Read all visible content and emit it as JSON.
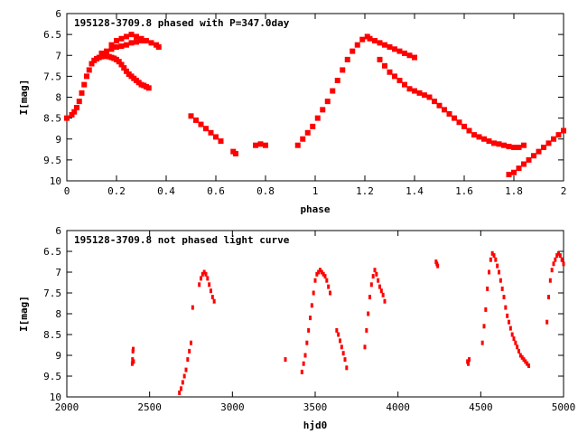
{
  "chart_data": [
    {
      "type": "scatter",
      "title": "195128-3709.8 phased with P=347.0day",
      "xlabel": "phase",
      "ylabel": "I[mag]",
      "xlim": [
        0,
        2
      ],
      "ylim": [
        10,
        6
      ],
      "y_inverted": true,
      "grid": false,
      "legend": "none",
      "marker_color": "#ff0000",
      "xticks": [
        {
          "value": 0,
          "label": "0"
        },
        {
          "value": 0.2,
          "label": "0.2"
        },
        {
          "value": 0.4,
          "label": "0.4"
        },
        {
          "value": 0.6,
          "label": "0.6"
        },
        {
          "value": 0.8,
          "label": "0.8"
        },
        {
          "value": 1,
          "label": "1"
        },
        {
          "value": 1.2,
          "label": "1.2"
        },
        {
          "value": 1.4,
          "label": "1.4"
        },
        {
          "value": 1.6,
          "label": "1.6"
        },
        {
          "value": 1.8,
          "label": "1.8"
        },
        {
          "value": 2,
          "label": "2"
        }
      ],
      "yticks": [
        {
          "value": 6,
          "label": "6"
        },
        {
          "value": 6.5,
          "label": "6.5"
        },
        {
          "value": 7,
          "label": "7"
        },
        {
          "value": 7.5,
          "label": "7.5"
        },
        {
          "value": 8,
          "label": "8"
        },
        {
          "value": 8.5,
          "label": "8.5"
        },
        {
          "value": 9,
          "label": "9"
        },
        {
          "value": 9.5,
          "label": "9.5"
        },
        {
          "value": 10,
          "label": "10"
        }
      ],
      "x": [
        0.0,
        0.02,
        0.03,
        0.04,
        0.05,
        0.06,
        0.07,
        0.08,
        0.09,
        0.1,
        0.11,
        0.12,
        0.13,
        0.14,
        0.15,
        0.16,
        0.17,
        0.18,
        0.19,
        0.2,
        0.21,
        0.22,
        0.23,
        0.24,
        0.25,
        0.26,
        0.27,
        0.28,
        0.29,
        0.3,
        0.31,
        0.32,
        0.33,
        0.36,
        0.37,
        0.18,
        0.2,
        0.22,
        0.24,
        0.26,
        0.28,
        0.3,
        0.32,
        0.34,
        0.14,
        0.16,
        0.18,
        0.2,
        0.22,
        0.24,
        0.26,
        0.28,
        0.3,
        0.5,
        0.52,
        0.54,
        0.56,
        0.58,
        0.6,
        0.62,
        0.67,
        0.68,
        0.76,
        0.78,
        0.8,
        0.93,
        0.95,
        0.97,
        0.99,
        1.01,
        1.03,
        1.05,
        1.07,
        1.09,
        1.11,
        1.13,
        1.15,
        1.17,
        1.19,
        1.21,
        1.22,
        1.24,
        1.26,
        1.28,
        1.3,
        1.32,
        1.34,
        1.36,
        1.38,
        1.4,
        1.26,
        1.28,
        1.3,
        1.32,
        1.34,
        1.36,
        1.38,
        1.4,
        1.42,
        1.44,
        1.46,
        1.48,
        1.5,
        1.52,
        1.54,
        1.56,
        1.58,
        1.6,
        1.62,
        1.64,
        1.66,
        1.68,
        1.7,
        1.72,
        1.74,
        1.76,
        1.78,
        1.8,
        1.82,
        1.84,
        1.78,
        1.8,
        1.82,
        1.84,
        1.86,
        1.88,
        1.9,
        1.92,
        1.94,
        1.96,
        1.98,
        2.0
      ],
      "y": [
        8.5,
        8.42,
        8.35,
        8.25,
        8.1,
        7.9,
        7.7,
        7.5,
        7.35,
        7.2,
        7.12,
        7.08,
        7.05,
        7.03,
        7.02,
        7.02,
        7.03,
        7.05,
        7.07,
        7.1,
        7.15,
        7.22,
        7.3,
        7.38,
        7.45,
        7.5,
        7.55,
        7.6,
        7.65,
        7.7,
        7.72,
        7.75,
        7.78,
        6.75,
        6.8,
        6.75,
        6.65,
        6.6,
        6.55,
        6.5,
        6.55,
        6.6,
        6.65,
        6.7,
        6.95,
        6.9,
        6.85,
        6.8,
        6.78,
        6.75,
        6.7,
        6.68,
        6.65,
        8.45,
        8.55,
        8.65,
        8.75,
        8.85,
        8.95,
        9.05,
        9.3,
        9.35,
        9.15,
        9.12,
        9.15,
        9.15,
        9.0,
        8.85,
        8.7,
        8.5,
        8.3,
        8.1,
        7.85,
        7.6,
        7.35,
        7.1,
        6.9,
        6.75,
        6.62,
        6.55,
        6.6,
        6.65,
        6.7,
        6.75,
        6.8,
        6.85,
        6.9,
        6.95,
        7.0,
        7.05,
        7.1,
        7.25,
        7.4,
        7.5,
        7.6,
        7.7,
        7.8,
        7.85,
        7.9,
        7.95,
        8.0,
        8.1,
        8.2,
        8.3,
        8.4,
        8.5,
        8.6,
        8.7,
        8.8,
        8.9,
        8.95,
        9.0,
        9.05,
        9.1,
        9.12,
        9.15,
        9.18,
        9.2,
        9.2,
        9.15,
        9.85,
        9.8,
        9.7,
        9.6,
        9.5,
        9.4,
        9.3,
        9.2,
        9.1,
        9.0,
        8.9,
        8.8
      ]
    },
    {
      "type": "scatter",
      "title": "195128-3709.8 not phased light curve",
      "xlabel": "hjd0",
      "ylabel": "I[mag]",
      "xlim": [
        2000,
        5000
      ],
      "ylim": [
        10,
        6
      ],
      "y_inverted": true,
      "grid": false,
      "legend": "none",
      "marker_color": "#ff0000",
      "xticks": [
        {
          "value": 2000,
          "label": "2000"
        },
        {
          "value": 2500,
          "label": "2500"
        },
        {
          "value": 3000,
          "label": "3000"
        },
        {
          "value": 3500,
          "label": "3500"
        },
        {
          "value": 4000,
          "label": "4000"
        },
        {
          "value": 4500,
          "label": "4500"
        },
        {
          "value": 5000,
          "label": "5000"
        }
      ],
      "yticks": [
        {
          "value": 6,
          "label": "6"
        },
        {
          "value": 6.5,
          "label": "6.5"
        },
        {
          "value": 7,
          "label": "7"
        },
        {
          "value": 7.5,
          "label": "7.5"
        },
        {
          "value": 8,
          "label": "8"
        },
        {
          "value": 8.5,
          "label": "8.5"
        },
        {
          "value": 9,
          "label": "9"
        },
        {
          "value": 9.5,
          "label": "9.5"
        },
        {
          "value": 10,
          "label": "10"
        }
      ],
      "x": [
        2395,
        2397,
        2399,
        2401,
        2403,
        2680,
        2690,
        2700,
        2710,
        2720,
        2730,
        2740,
        2750,
        2760,
        2800,
        2810,
        2820,
        2830,
        2840,
        2850,
        2860,
        2870,
        2880,
        2890,
        3320,
        3420,
        3430,
        3440,
        3450,
        3460,
        3470,
        3480,
        3490,
        3500,
        3510,
        3520,
        3530,
        3540,
        3550,
        3560,
        3570,
        3580,
        3590,
        3630,
        3640,
        3650,
        3660,
        3670,
        3680,
        3690,
        3800,
        3810,
        3820,
        3830,
        3840,
        3850,
        3860,
        3870,
        3880,
        3890,
        3900,
        3910,
        3920,
        4230,
        4235,
        4240,
        4420,
        4425,
        4430,
        4510,
        4520,
        4530,
        4540,
        4550,
        4560,
        4570,
        4580,
        4590,
        4600,
        4610,
        4620,
        4630,
        4640,
        4650,
        4660,
        4670,
        4680,
        4690,
        4700,
        4710,
        4720,
        4730,
        4740,
        4750,
        4760,
        4770,
        4780,
        4790,
        4900,
        4910,
        4920,
        4930,
        4940,
        4950,
        4960,
        4970,
        4980,
        4990,
        5000
      ],
      "y": [
        9.2,
        9.1,
        8.9,
        8.85,
        9.15,
        9.9,
        9.8,
        9.65,
        9.5,
        9.35,
        9.1,
        8.9,
        8.7,
        7.85,
        7.3,
        7.15,
        7.05,
        7.0,
        7.05,
        7.15,
        7.3,
        7.45,
        7.6,
        7.7,
        9.1,
        9.4,
        9.2,
        9.0,
        8.7,
        8.4,
        8.1,
        7.8,
        7.5,
        7.2,
        7.05,
        7.0,
        6.95,
        7.0,
        7.05,
        7.1,
        7.2,
        7.35,
        7.5,
        8.4,
        8.5,
        8.65,
        8.8,
        8.95,
        9.1,
        9.3,
        8.8,
        8.4,
        8.0,
        7.6,
        7.3,
        7.1,
        6.95,
        7.05,
        7.2,
        7.35,
        7.45,
        7.55,
        7.7,
        6.75,
        6.8,
        6.85,
        9.15,
        9.2,
        9.1,
        8.7,
        8.3,
        7.9,
        7.4,
        7.0,
        6.7,
        6.55,
        6.6,
        6.7,
        6.85,
        7.0,
        7.2,
        7.4,
        7.6,
        7.85,
        8.05,
        8.2,
        8.35,
        8.5,
        8.6,
        8.7,
        8.8,
        8.9,
        9.0,
        9.05,
        9.1,
        9.15,
        9.2,
        9.25,
        8.2,
        7.6,
        7.2,
        6.95,
        6.8,
        6.7,
        6.6,
        6.55,
        6.6,
        6.7,
        6.8
      ]
    }
  ]
}
